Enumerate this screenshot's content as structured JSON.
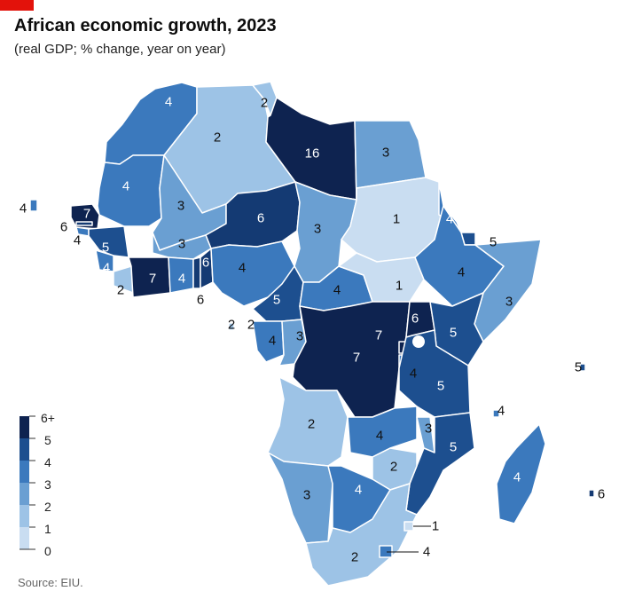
{
  "header": {
    "title": "African economic growth, 2023",
    "subtitle": "(real GDP; % change, year on year)"
  },
  "source": "Source: EIU.",
  "legend": {
    "labels": [
      "6+",
      "5",
      "4",
      "3",
      "2",
      "1",
      "0"
    ],
    "colors": [
      "#0e2350",
      "#1d4f8f",
      "#3b79bd",
      "#6a9fd2",
      "#9dc3e6",
      "#c9ddf1",
      "#e6eff9"
    ]
  },
  "colors": {
    "scale_6plus": "#0e2350",
    "scale_6": "#143a73",
    "scale_5": "#1d4f8f",
    "scale_4": "#3b79bd",
    "scale_3": "#6a9fd2",
    "scale_2": "#9dc3e6",
    "scale_1": "#c9ddf1",
    "border": "#ffffff"
  },
  "countries": [
    {
      "name": "Morocco",
      "value": "4"
    },
    {
      "name": "Algeria",
      "value": "2"
    },
    {
      "name": "Tunisia",
      "value": "2"
    },
    {
      "name": "Libya",
      "value": "16"
    },
    {
      "name": "Egypt",
      "value": "3"
    },
    {
      "name": "Western Sahara",
      "value": "4"
    },
    {
      "name": "Mali",
      "value": "3"
    },
    {
      "name": "Niger",
      "value": "6"
    },
    {
      "name": "Chad",
      "value": "3"
    },
    {
      "name": "Sudan",
      "value": "1"
    },
    {
      "name": "Cape Verde",
      "value": "4"
    },
    {
      "name": "Senegal",
      "value": "7"
    },
    {
      "name": "Gambia",
      "value": "6"
    },
    {
      "name": "Guinea-Bissau",
      "value": "4"
    },
    {
      "name": "Guinea",
      "value": "5"
    },
    {
      "name": "Burkina Faso",
      "value": "3"
    },
    {
      "name": "Sierra Leone",
      "value": "4"
    },
    {
      "name": "Liberia",
      "value": "2"
    },
    {
      "name": "Cote d'Ivoire",
      "value": "7"
    },
    {
      "name": "Ghana",
      "value": "4"
    },
    {
      "name": "Togo",
      "value": "6"
    },
    {
      "name": "Benin",
      "value": "6"
    },
    {
      "name": "Nigeria",
      "value": "4"
    },
    {
      "name": "Cameroon",
      "value": "5"
    },
    {
      "name": "CAR",
      "value": "4"
    },
    {
      "name": "South Sudan",
      "value": "1"
    },
    {
      "name": "Eritrea",
      "value": "4"
    },
    {
      "name": "Djibouti",
      "value": "5"
    },
    {
      "name": "Ethiopia",
      "value": "4"
    },
    {
      "name": "Somalia",
      "value": "3"
    },
    {
      "name": "Sao Tome",
      "value": "2"
    },
    {
      "name": "Equatorial Guinea",
      "value": "2"
    },
    {
      "name": "Gabon",
      "value": "4"
    },
    {
      "name": "Congo",
      "value": "3"
    },
    {
      "name": "DR Congo",
      "value": "7"
    },
    {
      "name": "Uganda",
      "value": "6"
    },
    {
      "name": "Kenya",
      "value": "5"
    },
    {
      "name": "Rwanda",
      "value": "7"
    },
    {
      "name": "Burundi",
      "value": "4"
    },
    {
      "name": "Tanzania",
      "value": "5"
    },
    {
      "name": "Seychelles",
      "value": "5"
    },
    {
      "name": "Comoros",
      "value": "4"
    },
    {
      "name": "Angola",
      "value": "2"
    },
    {
      "name": "Zambia",
      "value": "4"
    },
    {
      "name": "Malawi",
      "value": "3"
    },
    {
      "name": "Mozambique",
      "value": "5"
    },
    {
      "name": "Zimbabwe",
      "value": "2"
    },
    {
      "name": "Namibia",
      "value": "3"
    },
    {
      "name": "Botswana",
      "value": "4"
    },
    {
      "name": "Madagascar",
      "value": "4"
    },
    {
      "name": "Mauritius",
      "value": "6"
    },
    {
      "name": "Eswatini",
      "value": "1"
    },
    {
      "name": "South Africa",
      "value": "2"
    },
    {
      "name": "Lesotho",
      "value": "4"
    }
  ]
}
